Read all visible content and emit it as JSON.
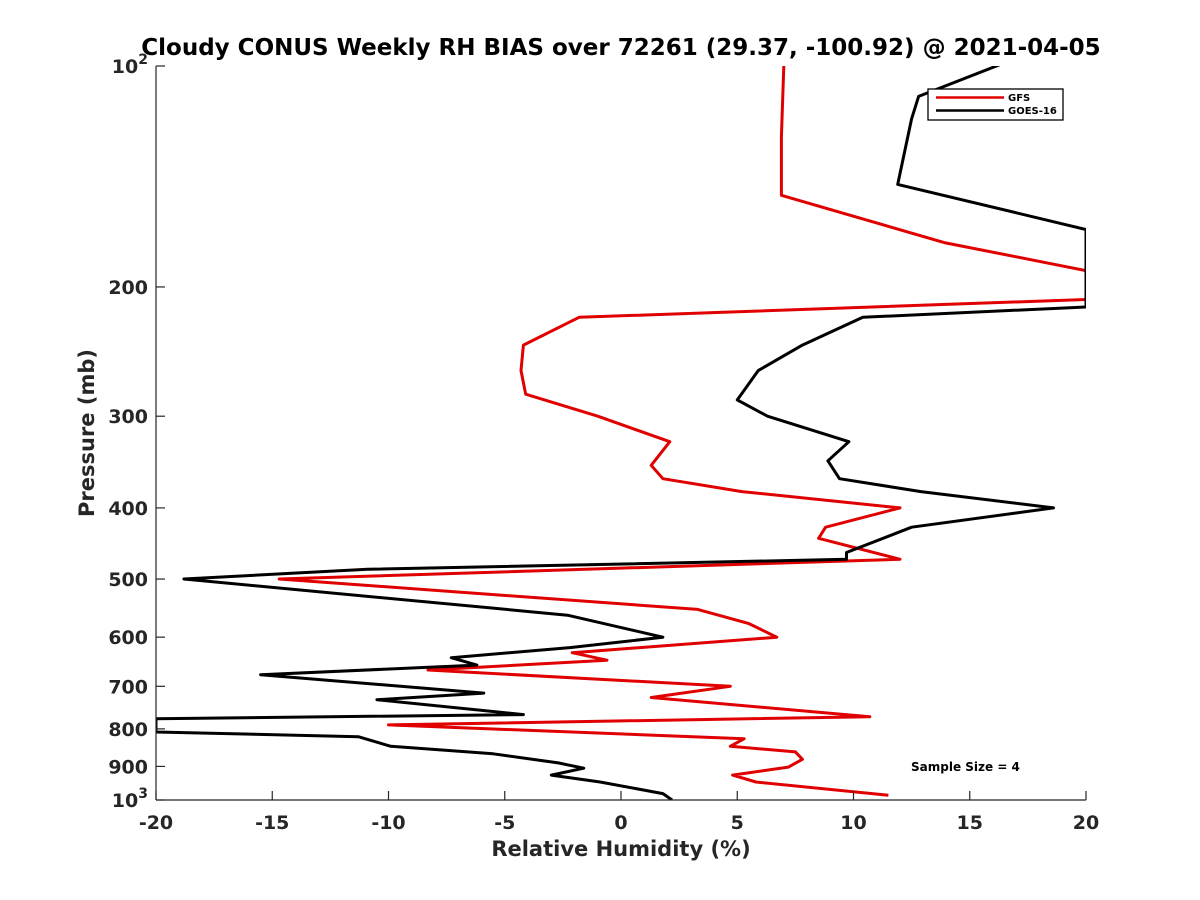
{
  "chart_data": {
    "type": "line",
    "title": "Cloudy CONUS Weekly RH BIAS over 72261 (29.37, -100.92) @ 2021-04-05",
    "xlabel": "Relative Humidity (%)",
    "ylabel": "Pressure (mb)",
    "xlim": [
      -20,
      20
    ],
    "ylim": [
      100,
      1000
    ],
    "y_scale": "log",
    "y_reversed": true,
    "x_ticks": [
      -20,
      -15,
      -10,
      -5,
      0,
      5,
      10,
      15,
      20
    ],
    "x_tick_labels": [
      "-20",
      "-15",
      "-10",
      "-5",
      "0",
      "5",
      "10",
      "15",
      "20"
    ],
    "y_ticks": [
      100,
      200,
      300,
      400,
      500,
      600,
      700,
      800,
      900,
      1000
    ],
    "y_tick_labels": [
      {
        "base": "10",
        "exp": "2"
      },
      {
        "base": "200",
        "exp": ""
      },
      {
        "base": "300",
        "exp": ""
      },
      {
        "base": "400",
        "exp": ""
      },
      {
        "base": "500",
        "exp": ""
      },
      {
        "base": "600",
        "exp": ""
      },
      {
        "base": "700",
        "exp": ""
      },
      {
        "base": "800",
        "exp": ""
      },
      {
        "base": "900",
        "exp": ""
      },
      {
        "base": "10",
        "exp": "3"
      }
    ],
    "grid": false,
    "legend_position": "top-right",
    "annotation": "Sample Size = 4",
    "series": [
      {
        "name": "GFS",
        "color": "#e00000",
        "points": [
          [
            7.0,
            100
          ],
          [
            6.9,
            125
          ],
          [
            6.9,
            150
          ],
          [
            13.9,
            174
          ],
          [
            20.0,
            190
          ],
          [
            20.0,
            208
          ],
          [
            -1.8,
            220
          ],
          [
            -4.2,
            240
          ],
          [
            -4.3,
            260
          ],
          [
            -4.1,
            280
          ],
          [
            -1.0,
            300
          ],
          [
            2.1,
            325
          ],
          [
            1.3,
            350
          ],
          [
            1.8,
            365
          ],
          [
            5.2,
            380
          ],
          [
            12.0,
            400
          ],
          [
            8.8,
            425
          ],
          [
            8.5,
            440
          ],
          [
            12.0,
            470
          ],
          [
            -14.7,
            500
          ],
          [
            3.3,
            550
          ],
          [
            5.5,
            575
          ],
          [
            6.7,
            600
          ],
          [
            -2.1,
            630
          ],
          [
            -0.6,
            645
          ],
          [
            -8.3,
            665
          ],
          [
            4.7,
            700
          ],
          [
            1.3,
            725
          ],
          [
            10.7,
            770
          ],
          [
            -10.0,
            790
          ],
          [
            5.3,
            825
          ],
          [
            4.7,
            845
          ],
          [
            7.5,
            860
          ],
          [
            7.8,
            880
          ],
          [
            7.2,
            902
          ],
          [
            4.8,
            925
          ],
          [
            5.8,
            945
          ],
          [
            11.5,
            985
          ]
        ]
      },
      {
        "name": "GOES-16",
        "color": "#000000",
        "points": [
          [
            16.5,
            99
          ],
          [
            12.8,
            110
          ],
          [
            12.5,
            118
          ],
          [
            11.9,
            145
          ],
          [
            20.0,
            167
          ],
          [
            20.0,
            213
          ],
          [
            10.4,
            220
          ],
          [
            7.8,
            240
          ],
          [
            5.9,
            260
          ],
          [
            5.0,
            285
          ],
          [
            6.3,
            300
          ],
          [
            9.8,
            325
          ],
          [
            8.9,
            345
          ],
          [
            9.4,
            365
          ],
          [
            12.9,
            380
          ],
          [
            18.6,
            400
          ],
          [
            12.5,
            425
          ],
          [
            9.7,
            460
          ],
          [
            9.7,
            470
          ],
          [
            -10.9,
            485
          ],
          [
            -18.8,
            500
          ],
          [
            -2.3,
            560
          ],
          [
            1.8,
            600
          ],
          [
            -2.2,
            620
          ],
          [
            -7.3,
            640
          ],
          [
            -6.2,
            655
          ],
          [
            -15.5,
            675
          ],
          [
            -5.9,
            715
          ],
          [
            -10.5,
            730
          ],
          [
            -4.2,
            765
          ],
          [
            -20.0,
            775
          ],
          [
            -20.0,
            808
          ],
          [
            -11.3,
            820
          ],
          [
            -9.9,
            845
          ],
          [
            -5.5,
            865
          ],
          [
            -2.7,
            890
          ],
          [
            -1.6,
            905
          ],
          [
            -3.0,
            925
          ],
          [
            -0.9,
            945
          ],
          [
            1.8,
            980
          ],
          [
            2.2,
            1000
          ]
        ]
      }
    ]
  }
}
